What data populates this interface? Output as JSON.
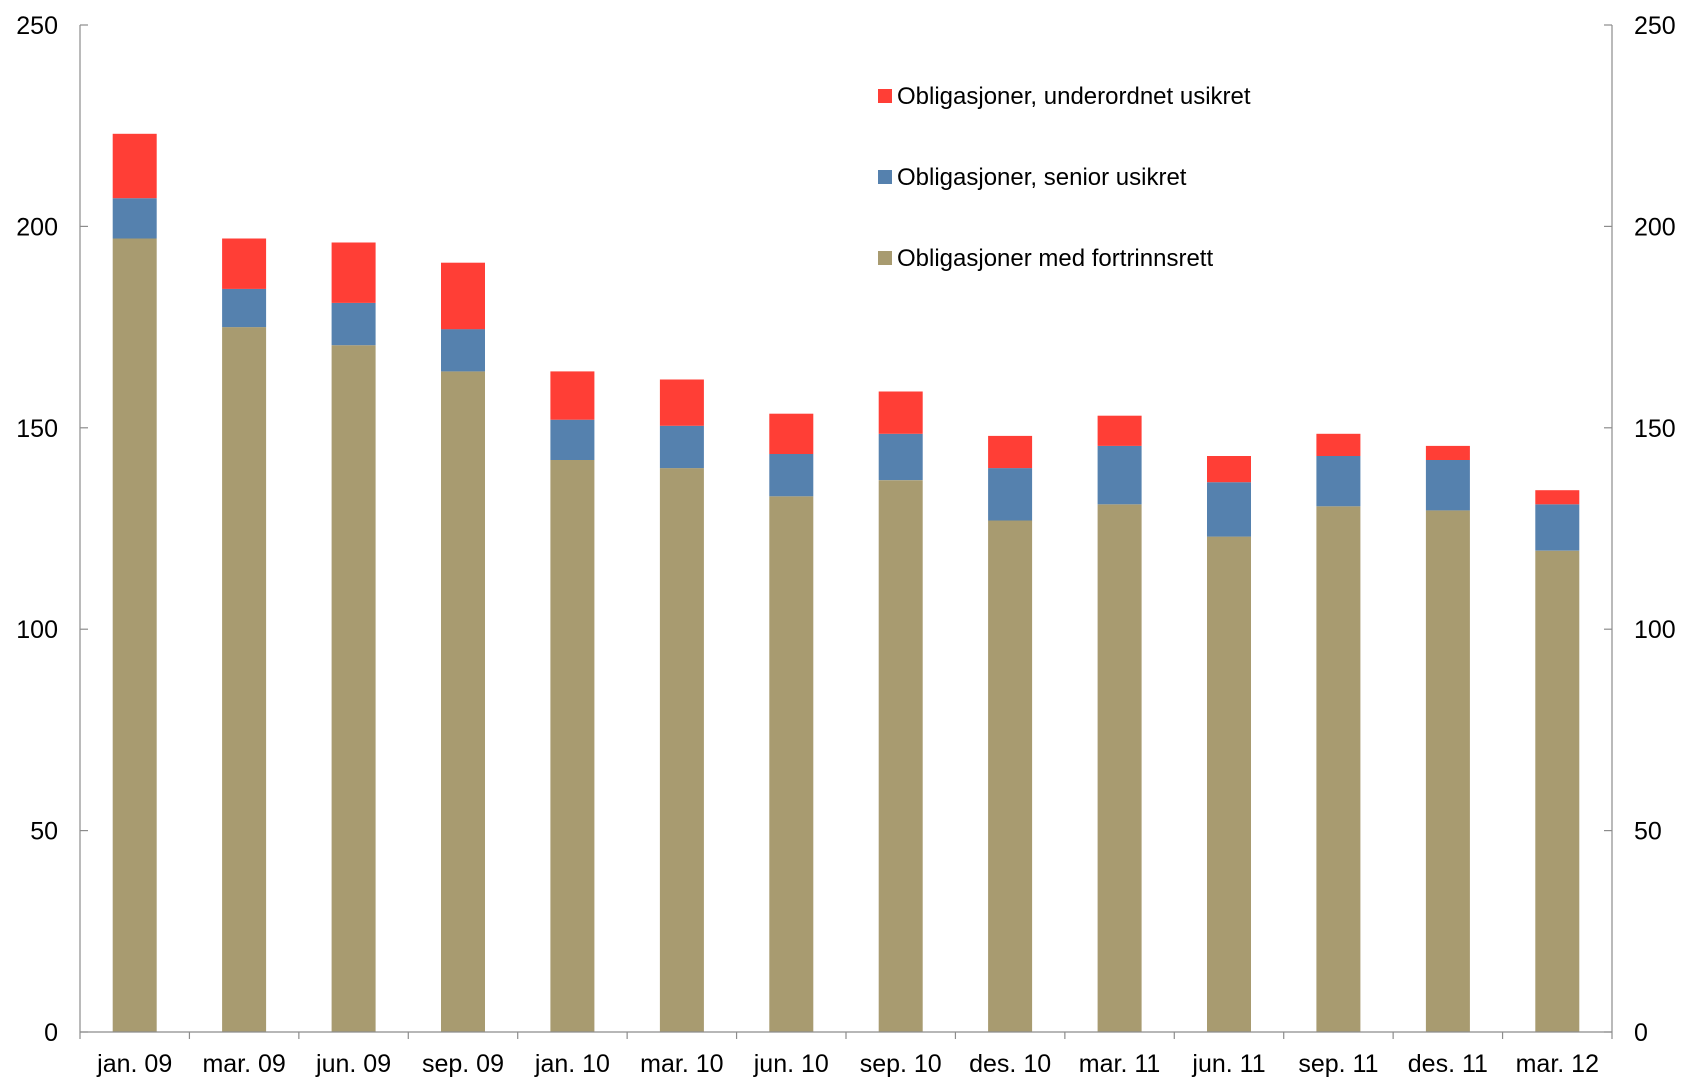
{
  "chart_data": {
    "type": "bar",
    "stacked": true,
    "title": "",
    "xlabel": "",
    "ylabel": "",
    "ylim": [
      0,
      250
    ],
    "y_ticks": [
      "0",
      "50",
      "100",
      "150",
      "200",
      "250"
    ],
    "y_tick_values": [
      0,
      50,
      100,
      150,
      200,
      250
    ],
    "y_axis_right": true,
    "grid": false,
    "legend_position": "top-right",
    "categories": [
      "jan. 09",
      "mar. 09",
      "jun. 09",
      "sep. 09",
      "jan. 10",
      "mar. 10",
      "jun. 10",
      "sep. 10",
      "des. 10",
      "mar. 11",
      "jun. 11",
      "sep. 11",
      "des. 11",
      "mar. 12"
    ],
    "series": [
      {
        "name": "Obligasjoner med fortrinnsrett",
        "color": "#A89B70",
        "values": [
          197,
          175,
          170.5,
          164,
          142,
          140,
          133,
          137,
          127,
          131,
          123,
          130.5,
          129.5,
          119.5
        ]
      },
      {
        "name": "Obligasjoner, senior usikret",
        "color": "#5581AE",
        "values": [
          10,
          9.5,
          10.5,
          10.5,
          10,
          10.5,
          10.5,
          11.5,
          13,
          14.5,
          13.5,
          12.5,
          12.5,
          11.5
        ]
      },
      {
        "name": "Obligasjoner, underordnet usikret",
        "color": "#FF3E36",
        "values": [
          16,
          12.5,
          15,
          16.5,
          12,
          11.5,
          10,
          10.5,
          8,
          7.5,
          6.5,
          5.5,
          3.5,
          3.5
        ]
      }
    ],
    "legend_order": [
      2,
      1,
      0
    ]
  }
}
